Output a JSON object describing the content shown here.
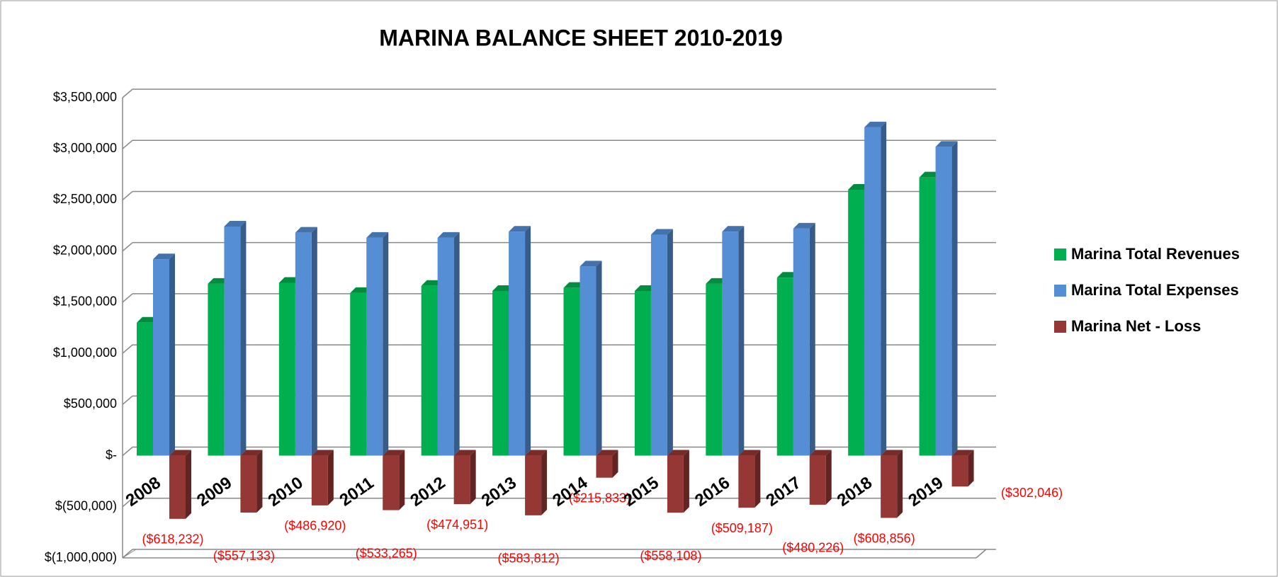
{
  "chart_data": {
    "type": "bar",
    "title": "MARINA BALANCE SHEET 2010-2019",
    "categories": [
      "2008",
      "2009",
      "2010",
      "2011",
      "2012",
      "2013",
      "2014",
      "2015",
      "2016",
      "2017",
      "2018",
      "2019"
    ],
    "series": [
      {
        "name": "Marina Total Revenues",
        "color": "#00b050",
        "values": [
          1300000,
          1680000,
          1690000,
          1590000,
          1660000,
          1610000,
          1640000,
          1610000,
          1680000,
          1740000,
          2600000,
          2720000
        ]
      },
      {
        "name": "Marina Total Expenses",
        "color": "#558ed5",
        "values": [
          1920000,
          2240000,
          2180000,
          2130000,
          2130000,
          2190000,
          1850000,
          2160000,
          2190000,
          2220000,
          3210000,
          3020000
        ]
      },
      {
        "name": "Marina Net - Loss",
        "color": "#953735",
        "values": [
          -618232,
          -557133,
          -486920,
          -533265,
          -474951,
          -583812,
          -215833,
          -558108,
          -509187,
          -480226,
          -608856,
          -302046
        ],
        "value_labels": [
          "($618,232)",
          "($557,133)",
          "($486,920)",
          "($533,265)",
          "($474,951)",
          "($583,812)",
          "($215,833)",
          "($558,108)",
          "($509,187)",
          "($480,226)",
          "($608,856)",
          "($302,046)"
        ]
      }
    ],
    "ylim": [
      -1000000,
      3500000
    ],
    "yticks": [
      {
        "value": -1000000,
        "label": "$(1,000,000)"
      },
      {
        "value": -500000,
        "label": "$(500,000)"
      },
      {
        "value": 0,
        "label": "$-"
      },
      {
        "value": 500000,
        "label": "$500,000"
      },
      {
        "value": 1000000,
        "label": "$1,000,000"
      },
      {
        "value": 1500000,
        "label": "$1,500,000"
      },
      {
        "value": 2000000,
        "label": "$2,000,000"
      },
      {
        "value": 2500000,
        "label": "$2,500,000"
      },
      {
        "value": 3000000,
        "label": "$3,000,000"
      },
      {
        "value": 3500000,
        "label": "$3,500,000"
      }
    ],
    "grid": true,
    "legend": "right"
  }
}
